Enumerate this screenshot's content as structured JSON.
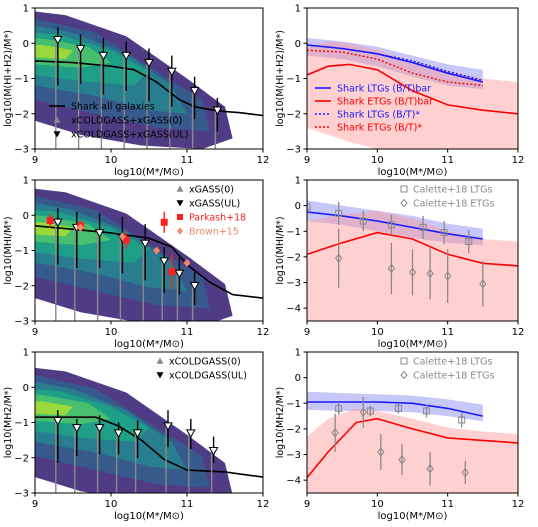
{
  "chart_data": [
    {
      "panel": "top-left",
      "type": "line",
      "xlabel": "log10(M*/M⊙)",
      "ylabel": "log10(M(HI+H2)/M*)",
      "xlim": [
        9,
        12
      ],
      "ylim": [
        -3,
        1
      ],
      "xticks": [
        "9",
        "10",
        "11",
        "12"
      ],
      "yticks": [
        "-3",
        "-2",
        "-1",
        "0",
        "1"
      ],
      "contours": true,
      "legend_placement": "lower-left",
      "legend": [
        "Shark all galaxies",
        "xCOLDGASS+xGASS(0)",
        "xCOLDGASS+xGASS(UL)"
      ],
      "series": [
        {
          "name": "Shark all galaxies",
          "x": [
            9.0,
            9.5,
            10.0,
            10.3,
            10.6,
            10.9,
            11.1,
            11.4,
            11.7,
            12.0
          ],
          "y": [
            -0.5,
            -0.55,
            -0.65,
            -0.75,
            -1.1,
            -1.6,
            -1.8,
            -1.92,
            -1.97,
            -2.05
          ]
        },
        {
          "name": "xCOLDGASS+xGASS(0)",
          "x": [
            9.3,
            9.6,
            9.9,
            10.2,
            10.5,
            10.8,
            11.1,
            11.4
          ],
          "y": [
            0.1,
            -0.15,
            -0.35,
            -0.35,
            -0.55,
            -0.8,
            -1.35,
            -1.9
          ],
          "yerr_up": [
            0.35,
            0.4,
            0.5,
            0.4,
            0.4,
            0.45,
            0.4,
            0.35
          ],
          "yerr_down": [
            1.3,
            1.0,
            1.1,
            1.0,
            1.1,
            1.0,
            0.8,
            0.6
          ]
        }
      ]
    },
    {
      "panel": "top-right",
      "type": "line",
      "xlabel": "log10(M*/M⊙)",
      "ylabel": "log10(M(HI+H2)/M*)",
      "xlim": [
        9,
        12
      ],
      "ylim": [
        -3,
        1
      ],
      "xticks": [
        "9",
        "10",
        "11",
        "12"
      ],
      "yticks": [
        "-3",
        "-2",
        "-1",
        "0",
        "1"
      ],
      "legend_placement": "center",
      "legend": [
        "Shark LTGs (B/T)bar",
        "Shark ETGs (B/T)bar",
        "Shark LTGs (B/T)*",
        "Shark ETGs (B/T)*"
      ],
      "series": [
        {
          "name": "Shark LTGs (B/T)bar",
          "x": [
            9.0,
            9.5,
            10.0,
            10.5,
            11.0,
            11.5
          ],
          "y": [
            -0.05,
            -0.15,
            -0.3,
            -0.55,
            -0.85,
            -1.1
          ],
          "band_low": [
            -0.35,
            -0.45,
            -0.65,
            -0.95,
            -1.2,
            -1.3
          ],
          "band_high": [
            0.15,
            0.05,
            -0.1,
            -0.35,
            -0.6,
            -0.75
          ]
        },
        {
          "name": "Shark ETGs (B/T)bar",
          "x": [
            9.0,
            9.3,
            9.6,
            10.0,
            10.5,
            11.0,
            11.5,
            12.0
          ],
          "y": [
            -0.9,
            -0.65,
            -0.6,
            -0.75,
            -1.35,
            -1.75,
            -1.9,
            -2.0
          ],
          "band_low": [
            -2.4,
            -2.6,
            -2.8,
            -3.0,
            -3.0,
            -3.0,
            -3.0,
            -3.0
          ],
          "band_high": [
            -0.1,
            0.05,
            0.0,
            -0.2,
            -0.5,
            -0.8,
            -1.0,
            -1.1
          ]
        },
        {
          "name": "Shark LTGs (B/T)*",
          "x": [
            9.0,
            9.5,
            10.0,
            10.5,
            11.0,
            11.5
          ],
          "y": [
            -0.05,
            -0.15,
            -0.3,
            -0.5,
            -0.8,
            -1.05
          ]
        },
        {
          "name": "Shark ETGs (B/T)*",
          "x": [
            9.0,
            9.5,
            10.0,
            10.5,
            11.0,
            11.5
          ],
          "y": [
            -0.2,
            -0.25,
            -0.45,
            -0.85,
            -1.1,
            -1.2
          ]
        }
      ]
    },
    {
      "panel": "middle-left",
      "type": "line",
      "xlabel": "log10(M*/M⊙)",
      "ylabel": "log10(MHI/M*)",
      "xlim": [
        9,
        12
      ],
      "ylim": [
        -3,
        1
      ],
      "xticks": [
        "9",
        "10",
        "11",
        "12"
      ],
      "yticks": [
        "-3",
        "-2",
        "-1",
        "0",
        "1"
      ],
      "contours": true,
      "legend_placement": "top-right",
      "legend": [
        "xGASS(0)",
        "xGASS(UL)",
        "Parkash+18",
        "Brown+15"
      ],
      "series": [
        {
          "name": "Shark",
          "x": [
            9.0,
            9.5,
            10.0,
            10.5,
            10.8,
            11.0,
            11.3,
            11.6,
            12.0
          ],
          "y": [
            -0.3,
            -0.4,
            -0.5,
            -0.65,
            -0.9,
            -1.4,
            -1.9,
            -2.25,
            -2.35
          ]
        },
        {
          "name": "xGASS(0)",
          "x": [
            9.3,
            9.55,
            9.85,
            10.15,
            10.45,
            10.7,
            10.9,
            11.1
          ],
          "y": [
            -0.2,
            -0.35,
            -0.5,
            -0.65,
            -0.8,
            -1.3,
            -1.65,
            -2.0
          ],
          "yerr_up": [
            0.4,
            0.45,
            0.55,
            0.6,
            0.55,
            0.4,
            0.5,
            0.4
          ],
          "yerr_down": [
            1.2,
            1.15,
            1.0,
            1.0,
            1.05,
            0.9,
            0.6,
            0.55
          ]
        },
        {
          "name": "Parkash+18",
          "x": [
            9.2,
            9.6,
            10.2,
            10.7,
            10.8
          ],
          "y": [
            -0.15,
            -0.3,
            -0.7,
            -0.2,
            -1.6
          ],
          "yerr": [
            0.2,
            0.15,
            0.25,
            0.3,
            0.5
          ]
        },
        {
          "name": "Brown+15",
          "x": [
            9.6,
            10.15,
            10.6,
            11.0
          ],
          "y": [
            -0.35,
            -0.6,
            -1.0,
            -1.35
          ]
        }
      ]
    },
    {
      "panel": "middle-right",
      "type": "line",
      "xlabel": "log10(M*/M⊙)",
      "ylabel": "log10(MHI/M*)",
      "xlim": [
        9,
        12
      ],
      "ylim": [
        -4.5,
        1
      ],
      "xticks": [
        "9",
        "10",
        "11",
        "12"
      ],
      "yticks": [
        "-4",
        "-3",
        "-2",
        "-1",
        "0",
        "1"
      ],
      "legend_placement": "top-right",
      "legend": [
        "Calette+18 LTGs",
        "Calette+18 ETGs"
      ],
      "series": [
        {
          "name": "Shark LTGs",
          "x": [
            9.0,
            9.5,
            10.0,
            10.5,
            11.0,
            11.5
          ],
          "y": [
            -0.25,
            -0.4,
            -0.6,
            -0.85,
            -1.1,
            -1.3
          ],
          "band_low": [
            -0.6,
            -0.75,
            -1.0,
            -1.25,
            -1.45,
            -1.55
          ],
          "band_high": [
            0.2,
            0.0,
            -0.2,
            -0.4,
            -0.7,
            -0.9
          ]
        },
        {
          "name": "Shark ETGs",
          "x": [
            9.0,
            9.5,
            10.0,
            10.5,
            11.0,
            11.5,
            12.0
          ],
          "y": [
            -1.9,
            -1.45,
            -1.05,
            -1.3,
            -1.9,
            -2.25,
            -2.35
          ],
          "band_low": [
            -4.5,
            -4.5,
            -4.5,
            -4.5,
            -4.5,
            -4.5,
            -4.5
          ],
          "band_high": [
            -0.6,
            -0.35,
            -0.2,
            -0.5,
            -1.0,
            -1.3,
            -1.4
          ]
        },
        {
          "name": "Calette+18 LTGs",
          "x": [
            9.0,
            9.45,
            9.8,
            10.2,
            10.65,
            10.95,
            11.3
          ],
          "y": [
            -0.05,
            -0.3,
            -0.6,
            -0.75,
            -0.85,
            -1.05,
            -1.4
          ],
          "yerr": [
            0.55,
            0.45,
            0.4,
            0.4,
            0.45,
            0.45,
            0.45
          ]
        },
        {
          "name": "Calette+18 ETGs",
          "x": [
            9.45,
            10.2,
            10.5,
            10.75,
            11.0,
            11.5
          ],
          "y": [
            -2.05,
            -2.45,
            -2.6,
            -2.65,
            -2.75,
            -3.05
          ],
          "yerr": [
            1.15,
            1.0,
            0.9,
            1.0,
            1.05,
            0.9
          ]
        }
      ]
    },
    {
      "panel": "bottom-left",
      "type": "line",
      "xlabel": "log10(M*/M⊙)",
      "ylabel": "log10(MH2/M*)",
      "xlim": [
        9,
        12
      ],
      "ylim": [
        -3,
        1
      ],
      "xticks": [
        "9",
        "10",
        "11",
        "12"
      ],
      "yticks": [
        "-3",
        "-2",
        "-1",
        "0",
        "1"
      ],
      "contours": true,
      "legend_placement": "top-right",
      "legend": [
        "xCOLDGASS(0)",
        "xCOLDGASS(UL)"
      ],
      "series": [
        {
          "name": "Shark",
          "x": [
            9.0,
            9.5,
            9.8,
            10.1,
            10.4,
            10.7,
            11.0,
            11.5,
            12.0
          ],
          "y": [
            -0.85,
            -0.85,
            -0.85,
            -1.1,
            -1.5,
            -2.05,
            -2.35,
            -2.4,
            -2.55
          ]
        },
        {
          "name": "xCOLDGASS(0)",
          "x": [
            9.3,
            9.55,
            9.85,
            10.1,
            10.35,
            10.75,
            11.05,
            11.35
          ],
          "y": [
            -0.95,
            -1.15,
            -1.15,
            -1.3,
            -1.3,
            -1.1,
            -1.3,
            -1.8
          ],
          "yerr_up": [
            0.3,
            0.25,
            0.35,
            0.3,
            0.35,
            0.45,
            0.4,
            0.4
          ],
          "yerr_down": [
            1.2,
            0.8,
            0.75,
            0.6,
            0.7,
            0.6,
            0.45,
            0.35
          ]
        }
      ]
    },
    {
      "panel": "bottom-right",
      "type": "line",
      "xlabel": "log10(M*/M⊙)",
      "ylabel": "log10(MH2/M*)",
      "xlim": [
        9,
        12
      ],
      "ylim": [
        -4.5,
        1
      ],
      "xticks": [
        "9",
        "10",
        "11",
        "12"
      ],
      "yticks": [
        "-4",
        "-3",
        "-2",
        "-1",
        "0",
        "1"
      ],
      "legend_placement": "top-right",
      "legend": [
        "Calette+18 LTGs",
        "Calette+18 ETGs"
      ],
      "series": [
        {
          "name": "Shark LTGs",
          "x": [
            9.0,
            9.5,
            10.0,
            10.5,
            11.0,
            11.5
          ],
          "y": [
            -0.95,
            -0.95,
            -0.95,
            -1.0,
            -1.2,
            -1.5
          ],
          "band_low": [
            -1.25,
            -1.3,
            -1.3,
            -1.35,
            -1.5,
            -1.7
          ],
          "band_high": [
            -0.55,
            -0.6,
            -0.65,
            -0.7,
            -0.85,
            -1.05
          ]
        },
        {
          "name": "Shark ETGs",
          "x": [
            9.0,
            9.3,
            9.7,
            10.0,
            10.5,
            11.0,
            11.5,
            12.0
          ],
          "y": [
            -3.9,
            -2.9,
            -1.75,
            -1.6,
            -2.0,
            -2.35,
            -2.45,
            -2.55
          ],
          "band_low": [
            -4.5,
            -4.5,
            -4.5,
            -4.5,
            -4.5,
            -4.5,
            -4.5,
            -4.5
          ],
          "band_high": [
            -2.3,
            -1.6,
            -1.2,
            -1.3,
            -1.6,
            -1.95,
            -2.1,
            -2.2
          ]
        },
        {
          "name": "Calette+18 LTGs",
          "x": [
            9.45,
            9.9,
            10.3,
            10.7,
            11.2
          ],
          "y": [
            -1.2,
            -1.3,
            -1.2,
            -1.3,
            -1.65
          ],
          "yerr": [
            0.25,
            0.2,
            0.2,
            0.25,
            0.3
          ]
        },
        {
          "name": "Calette+18 ETGs",
          "x": [
            9.4,
            9.8,
            10.05,
            10.35,
            10.75,
            11.25
          ],
          "y": [
            -2.15,
            -1.35,
            -2.9,
            -3.2,
            -3.55,
            -3.7
          ],
          "yerr": [
            0.75,
            0.6,
            0.7,
            0.6,
            0.65,
            0.45
          ]
        }
      ]
    }
  ]
}
